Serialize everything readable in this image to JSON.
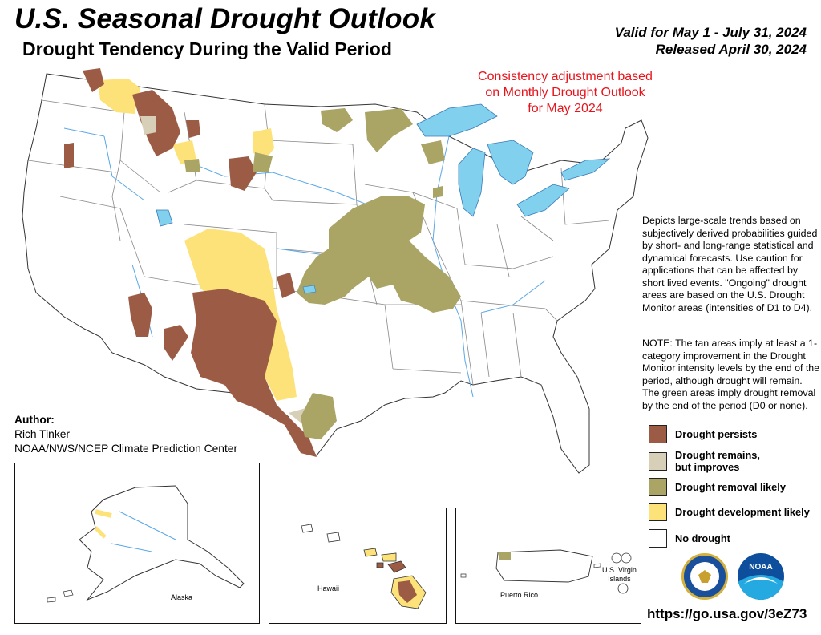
{
  "title": "U.S. Seasonal Drought Outlook",
  "subtitle": "Drought Tendency During the Valid Period",
  "valid": "Valid for May 1 - July 31, 2024",
  "released": "Released April 30, 2024",
  "consistency_note": "Consistency adjustment based on Monthly Drought Outlook for May 2024",
  "description": "Depicts large-scale trends based on subjectively derived probabilities guided by short- and long-range statistical and dynamical forecasts. Use caution for applications that can be affected by short lived events. \"Ongoing\" drought areas are based on the U.S. Drought Monitor areas (intensities of D1 to D4).",
  "note": "NOTE: The tan areas imply at least a 1-category improvement in the Drought Monitor intensity levels by the end of the period, although drought will remain. The green areas imply drought removal by the end of the period (D0 or none).",
  "legend": {
    "persists": "Drought persists",
    "improves_1": "Drought remains,",
    "improves_2": "but improves",
    "removal": "Drought removal likely",
    "development": "Drought development likely",
    "none": "No drought"
  },
  "colors": {
    "persists": "#9b5b45",
    "improves": "#d8cfb8",
    "removal": "#aaa465",
    "development": "#fde27a",
    "none": "#ffffff",
    "water": "#80d0ee",
    "rivers": "#5aa8e8",
    "consistency_text": "#e8141b"
  },
  "author": {
    "heading": "Author:",
    "name": "Rich Tinker",
    "org": "NOAA/NWS/NCEP Climate Prediction Center"
  },
  "insets": {
    "alaska": "Alaska",
    "hawaii": "Hawaii",
    "puerto_rico": "Puerto Rico",
    "usvi_1": "U.S. Virgin",
    "usvi_2": "Islands"
  },
  "logos": [
    "department-of-commerce-seal",
    "noaa-logo"
  ],
  "noaa_logo_text": "NOAA",
  "url": "https://go.usa.gov/3eZ73"
}
